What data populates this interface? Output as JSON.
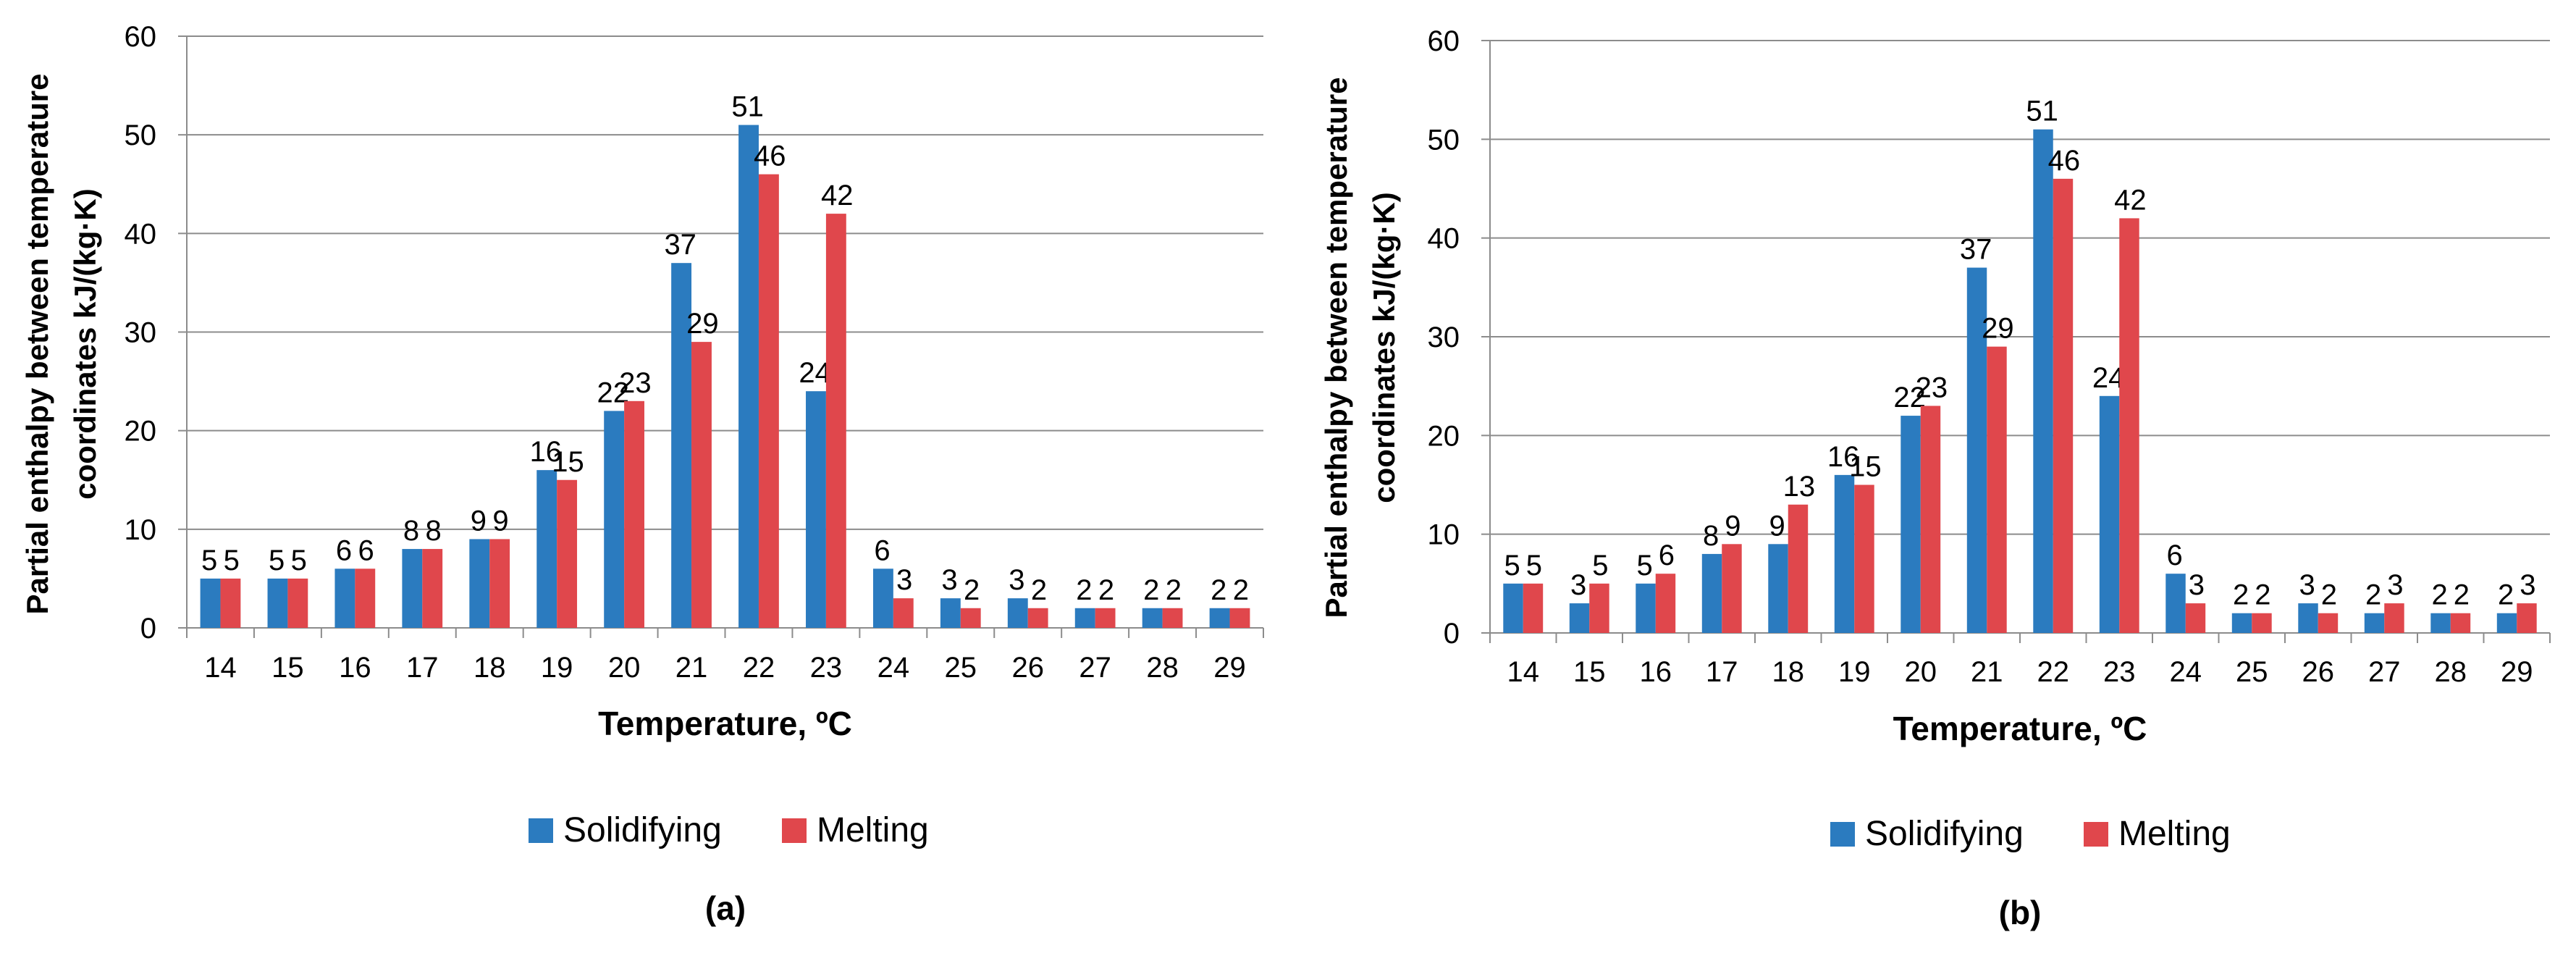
{
  "colors": {
    "solidifying": "#2b7bbf",
    "melting": "#e0474c"
  },
  "chart_data": [
    {
      "type": "bar",
      "panel_label": "(a)",
      "categories": [
        "14",
        "15",
        "16",
        "17",
        "18",
        "19",
        "20",
        "21",
        "22",
        "23",
        "24",
        "25",
        "26",
        "27",
        "28",
        "29"
      ],
      "series": [
        {
          "name": "Solidifying",
          "values": [
            5,
            5,
            6,
            8,
            9,
            16,
            22,
            37,
            51,
            24,
            6,
            3,
            3,
            2,
            2,
            2
          ]
        },
        {
          "name": "Melting",
          "values": [
            5,
            5,
            6,
            8,
            9,
            15,
            23,
            29,
            46,
            42,
            3,
            2,
            2,
            2,
            2,
            2
          ]
        }
      ],
      "xlabel": "Temperature, ºC",
      "ylabel_lines": [
        "Partial enthalpy between temperature",
        "coordinates kJ/(kg·K)"
      ],
      "ylim": [
        0,
        60
      ],
      "yticks": [
        0,
        10,
        20,
        30,
        40,
        50,
        60
      ],
      "grid": true,
      "legend": "bottom"
    },
    {
      "type": "bar",
      "panel_label": "(b)",
      "categories": [
        "14",
        "15",
        "16",
        "17",
        "18",
        "19",
        "20",
        "21",
        "22",
        "23",
        "24",
        "25",
        "26",
        "27",
        "28",
        "29"
      ],
      "series": [
        {
          "name": "Solidifying",
          "values": [
            5,
            3,
            5,
            8,
            9,
            16,
            22,
            37,
            51,
            24,
            6,
            2,
            3,
            2,
            2,
            2
          ]
        },
        {
          "name": "Melting",
          "values": [
            5,
            5,
            6,
            9,
            13,
            15,
            23,
            29,
            46,
            42,
            3,
            2,
            2,
            3,
            2,
            3
          ]
        }
      ],
      "xlabel": "Temperature, ºC",
      "ylabel_lines": [
        "Partial enthalpy between temperature",
        "coordinates kJ/(kg·K)"
      ],
      "ylim": [
        0,
        60
      ],
      "yticks": [
        0,
        10,
        20,
        30,
        40,
        50,
        60
      ],
      "grid": true,
      "legend": "bottom"
    }
  ]
}
